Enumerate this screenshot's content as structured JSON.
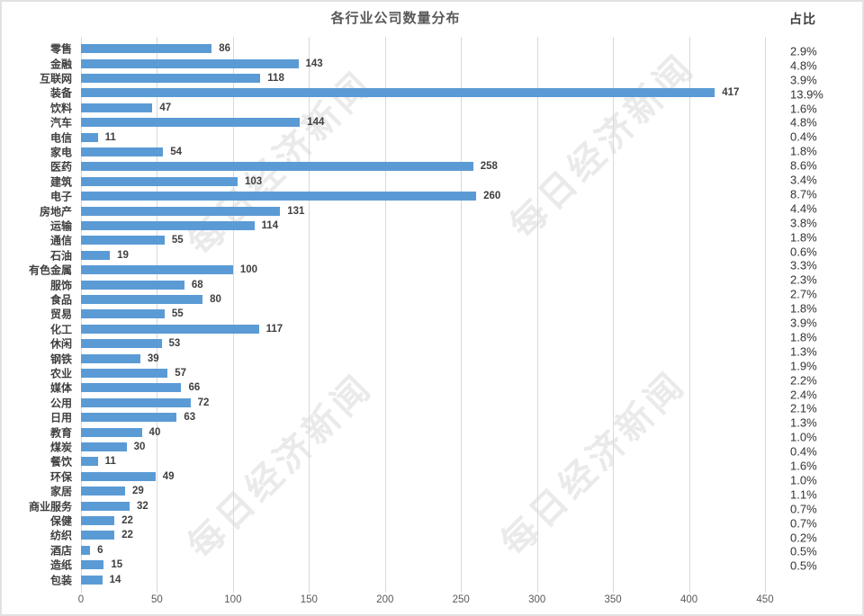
{
  "chart_data": {
    "type": "bar",
    "orientation": "horizontal",
    "title": "各行业公司数量分布",
    "percent_header": "占比",
    "categories": [
      "零售",
      "金融",
      "互联网",
      "装备",
      "饮料",
      "汽车",
      "电信",
      "家电",
      "医药",
      "建筑",
      "电子",
      "房地产",
      "运输",
      "通信",
      "石油",
      "有色金属",
      "服饰",
      "食品",
      "贸易",
      "化工",
      "休闲",
      "钢铁",
      "农业",
      "媒体",
      "公用",
      "日用",
      "教育",
      "煤炭",
      "餐饮",
      "环保",
      "家居",
      "商业服务",
      "保健",
      "纺织",
      "酒店",
      "造纸",
      "包装"
    ],
    "values": [
      86,
      143,
      118,
      417,
      47,
      144,
      11,
      54,
      258,
      103,
      260,
      131,
      114,
      55,
      19,
      100,
      68,
      80,
      55,
      117,
      53,
      39,
      57,
      66,
      72,
      63,
      40,
      30,
      11,
      49,
      29,
      32,
      22,
      22,
      6,
      15,
      14
    ],
    "percents": [
      "2.9%",
      "4.8%",
      "3.9%",
      "13.9%",
      "1.6%",
      "4.8%",
      "0.4%",
      "1.8%",
      "8.6%",
      "3.4%",
      "8.7%",
      "4.4%",
      "3.8%",
      "1.8%",
      "0.6%",
      "3.3%",
      "2.3%",
      "2.7%",
      "1.8%",
      "3.9%",
      "1.8%",
      "1.3%",
      "1.9%",
      "2.2%",
      "2.4%",
      "2.1%",
      "1.3%",
      "1.0%",
      "0.4%",
      "1.6%",
      "1.0%",
      "1.1%",
      "0.7%",
      "0.7%",
      "0.2%",
      "0.5%",
      "0.5%"
    ],
    "x_ticks": [
      0,
      50,
      100,
      150,
      200,
      250,
      300,
      350,
      400,
      450
    ],
    "xlim": [
      0,
      450
    ],
    "grid": true,
    "bar_color": "#5b9bd5",
    "gridline_color": "#d9d9d9"
  },
  "watermark": {
    "text": "每日经济新闻"
  }
}
